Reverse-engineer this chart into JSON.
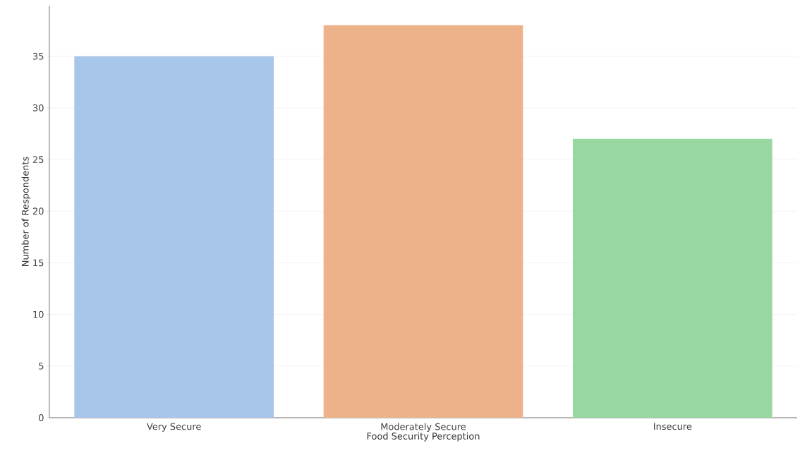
{
  "chart_data": {
    "type": "bar",
    "xlabel": "Food Security Perception",
    "ylabel": "Number of Respondents",
    "categories": [
      "Very Secure",
      "Moderately Secure",
      "Insecure"
    ],
    "values": [
      35,
      38,
      27
    ],
    "colors": [
      "#a8c5ea",
      "#eeb28a",
      "#97d7a0"
    ],
    "ylim": [
      0,
      39.9
    ],
    "yticks": [
      0,
      5,
      10,
      15,
      20,
      25,
      30,
      35
    ],
    "grid": "y"
  }
}
